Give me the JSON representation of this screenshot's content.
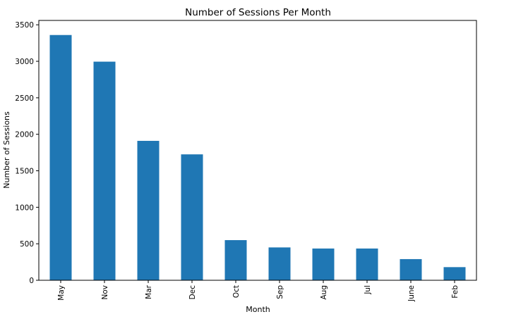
{
  "chart_data": {
    "type": "bar",
    "title": "Number of Sessions Per Month",
    "xlabel": "Month",
    "ylabel": "Number of Sessions",
    "categories": [
      "May",
      "Nov",
      "Mar",
      "Dec",
      "Oct",
      "Sep",
      "Aug",
      "Jul",
      "June",
      "Feb"
    ],
    "values": [
      3360,
      2995,
      1910,
      1725,
      550,
      450,
      435,
      435,
      290,
      180
    ],
    "ylim": [
      0,
      3560
    ],
    "yticks": [
      0,
      500,
      1000,
      1500,
      2000,
      2500,
      3000,
      3500
    ],
    "grid": false,
    "legend": "none",
    "colors": {
      "bar": "#1f77b4",
      "axis": "#000000",
      "background": "#ffffff"
    }
  }
}
